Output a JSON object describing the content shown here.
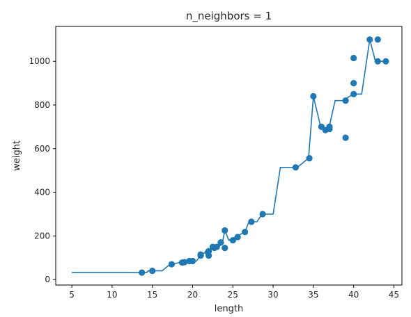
{
  "chart_data": {
    "type": "scatter",
    "title": "n_neighbors = 1",
    "xlabel": "length",
    "ylabel": "weight",
    "xlim": [
      3,
      46
    ],
    "ylim": [
      -25,
      1160
    ],
    "grid": false,
    "x_ticks": [
      5,
      10,
      15,
      20,
      25,
      30,
      35,
      40,
      45
    ],
    "x_tick_labels": [
      "5",
      "10",
      "15",
      "20",
      "25",
      "30",
      "35",
      "40",
      "45"
    ],
    "y_ticks": [
      0,
      200,
      400,
      600,
      800,
      1000
    ],
    "y_tick_labels": [
      "0",
      "200",
      "400",
      "600",
      "800",
      "1000"
    ],
    "colors": {
      "series": "#1f77b4"
    },
    "series": [
      {
        "type": "scatter",
        "points": [
          [
            13.7,
            32
          ],
          [
            15.0,
            40
          ],
          [
            17.4,
            70
          ],
          [
            18.7,
            78
          ],
          [
            19.0,
            80
          ],
          [
            19.6,
            85
          ],
          [
            20.0,
            85
          ],
          [
            21.0,
            110
          ],
          [
            21.0,
            115
          ],
          [
            21.9,
            125
          ],
          [
            22.0,
            130
          ],
          [
            22.0,
            110
          ],
          [
            22.5,
            150
          ],
          [
            22.7,
            145
          ],
          [
            23.0,
            150
          ],
          [
            23.5,
            170
          ],
          [
            24.0,
            225
          ],
          [
            24.0,
            145
          ],
          [
            25.0,
            180
          ],
          [
            25.6,
            195
          ],
          [
            26.5,
            218
          ],
          [
            27.3,
            265
          ],
          [
            28.7,
            300
          ],
          [
            32.8,
            514
          ],
          [
            34.5,
            556
          ],
          [
            35.0,
            840
          ],
          [
            36.0,
            700
          ],
          [
            36.5,
            685
          ],
          [
            37.0,
            700
          ],
          [
            37.0,
            690
          ],
          [
            39.0,
            820
          ],
          [
            39.0,
            650
          ],
          [
            40.0,
            1015
          ],
          [
            40.0,
            900
          ],
          [
            40.0,
            850
          ],
          [
            42.0,
            1100
          ],
          [
            43.0,
            1100
          ],
          [
            43.0,
            1000
          ],
          [
            44.0,
            1000
          ]
        ]
      },
      {
        "type": "line",
        "points": [
          [
            5,
            32
          ],
          [
            14.3,
            32
          ],
          [
            14.5,
            40
          ],
          [
            16.2,
            40
          ],
          [
            17.2,
            70
          ],
          [
            18.8,
            80
          ],
          [
            20.5,
            85
          ],
          [
            21.0,
            115
          ],
          [
            22.0,
            130
          ],
          [
            22.3,
            150
          ],
          [
            23.3,
            150
          ],
          [
            23.7,
            170
          ],
          [
            24.0,
            225
          ],
          [
            24.5,
            180
          ],
          [
            25.3,
            195
          ],
          [
            26.5,
            218
          ],
          [
            27.0,
            265
          ],
          [
            28.0,
            265
          ],
          [
            28.6,
            300
          ],
          [
            30.0,
            300
          ],
          [
            30.9,
            514
          ],
          [
            33.0,
            514
          ],
          [
            34.4,
            556
          ],
          [
            35.0,
            840
          ],
          [
            35.9,
            700
          ],
          [
            36.9,
            690
          ],
          [
            37.7,
            820
          ],
          [
            38.6,
            820
          ],
          [
            40.0,
            850
          ],
          [
            41.0,
            850
          ],
          [
            42.0,
            1100
          ],
          [
            42.7,
            1000
          ],
          [
            44.0,
            1000
          ]
        ]
      }
    ]
  }
}
